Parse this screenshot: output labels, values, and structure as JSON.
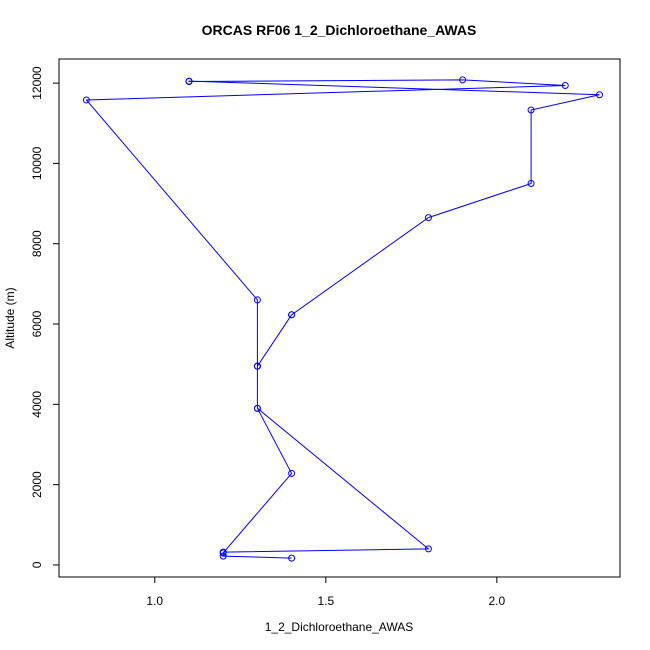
{
  "chart_data": {
    "type": "line",
    "title": "ORCAS RF06 1_2_Dichloroethane_AWAS",
    "xlabel": "1_2_Dichloroethane_AWAS",
    "ylabel": "Altitude (m)",
    "xlim": [
      0.72,
      2.36
    ],
    "ylim": [
      -300,
      12600
    ],
    "xticks": [
      1.0,
      1.5,
      2.0
    ],
    "xtick_labels": [
      "1.0",
      "1.5",
      "2.0"
    ],
    "yticks": [
      0,
      2000,
      4000,
      6000,
      8000,
      10000,
      12000
    ],
    "ytick_labels": [
      "0",
      "2000",
      "4000",
      "6000",
      "8000",
      "10000",
      "12000"
    ],
    "grid": false,
    "color": "#0000ff",
    "marker": "open-circle",
    "series": [
      {
        "x": [
          1.4,
          1.2,
          1.2,
          1.8,
          1.3,
          1.3,
          1.4,
          1.3,
          1.3,
          0.8,
          2.2,
          1.9,
          1.1,
          1.1,
          2.3,
          2.1,
          2.1,
          1.8,
          1.4,
          1.3,
          1.3,
          1.4,
          1.2
        ],
        "y": [
          170,
          220,
          320,
          400,
          3900,
          4950,
          6230,
          4950,
          6600,
          11580,
          11940,
          12080,
          12040,
          12050,
          11710,
          11330,
          9500,
          8650,
          6230,
          4950,
          3900,
          2280,
          300
        ]
      }
    ]
  }
}
